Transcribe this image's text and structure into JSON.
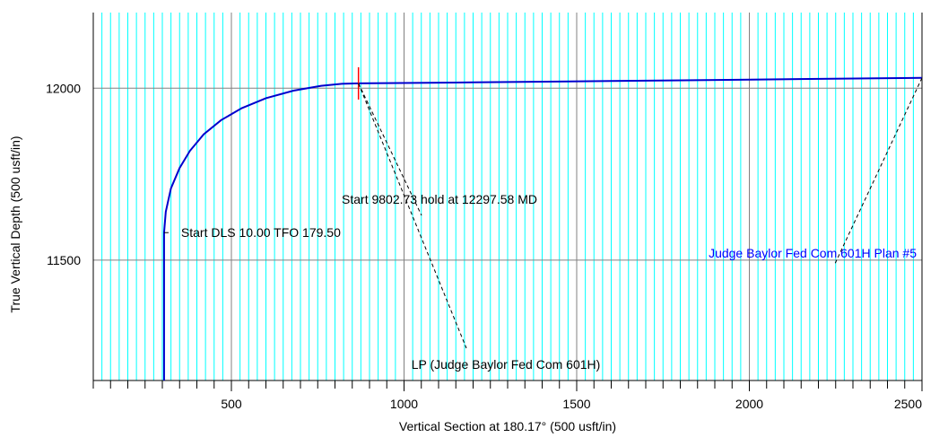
{
  "chart_data": {
    "type": "line",
    "title": "",
    "xlabel": "Vertical Section at 180.17° (500 usft/in)",
    "ylabel": "True Vertical Depth (500 usft/in)",
    "xlim": [
      100,
      2500
    ],
    "ylim": [
      12220,
      11150
    ],
    "y_inverted": true,
    "x_ticks": [
      500,
      1000,
      1500,
      2000,
      2500
    ],
    "y_ticks": [
      11500,
      12000
    ],
    "grid": true,
    "colors": {
      "major_grid": "#808080",
      "minor_grid": "#00ffff",
      "series": "#0000cd",
      "marker": "#ff0000",
      "leader": "#000000",
      "series_label": "#0000ff"
    },
    "series": [
      {
        "name": "Judge Baylor Fed Com 601H Plan #5",
        "x": [
          305,
          305,
          310,
          325,
          350,
          380,
          420,
          470,
          530,
          600,
          680,
          760,
          820,
          868,
          1200,
          1600,
          2000,
          2500
        ],
        "y": [
          11150,
          11580,
          11641,
          11709,
          11768,
          11818,
          11866,
          11907,
          11942,
          11971,
          11993,
          12007,
          12013,
          12014,
          12017,
          12021,
          12025,
          12030
        ]
      }
    ],
    "annotations": [
      {
        "text": "Start DLS 10.00 TFO 179.50",
        "x": 305,
        "y": 11580
      },
      {
        "text": "Start 9802.73 hold at 12297.58 MD",
        "x": 868,
        "y": 12014
      },
      {
        "text": "LP (Judge Baylor Fed Com 601H)",
        "x": 868,
        "y": 12014
      },
      {
        "text": "Judge Baylor Fed Com 601H Plan #5",
        "x": 2500,
        "y": 12030
      }
    ]
  }
}
